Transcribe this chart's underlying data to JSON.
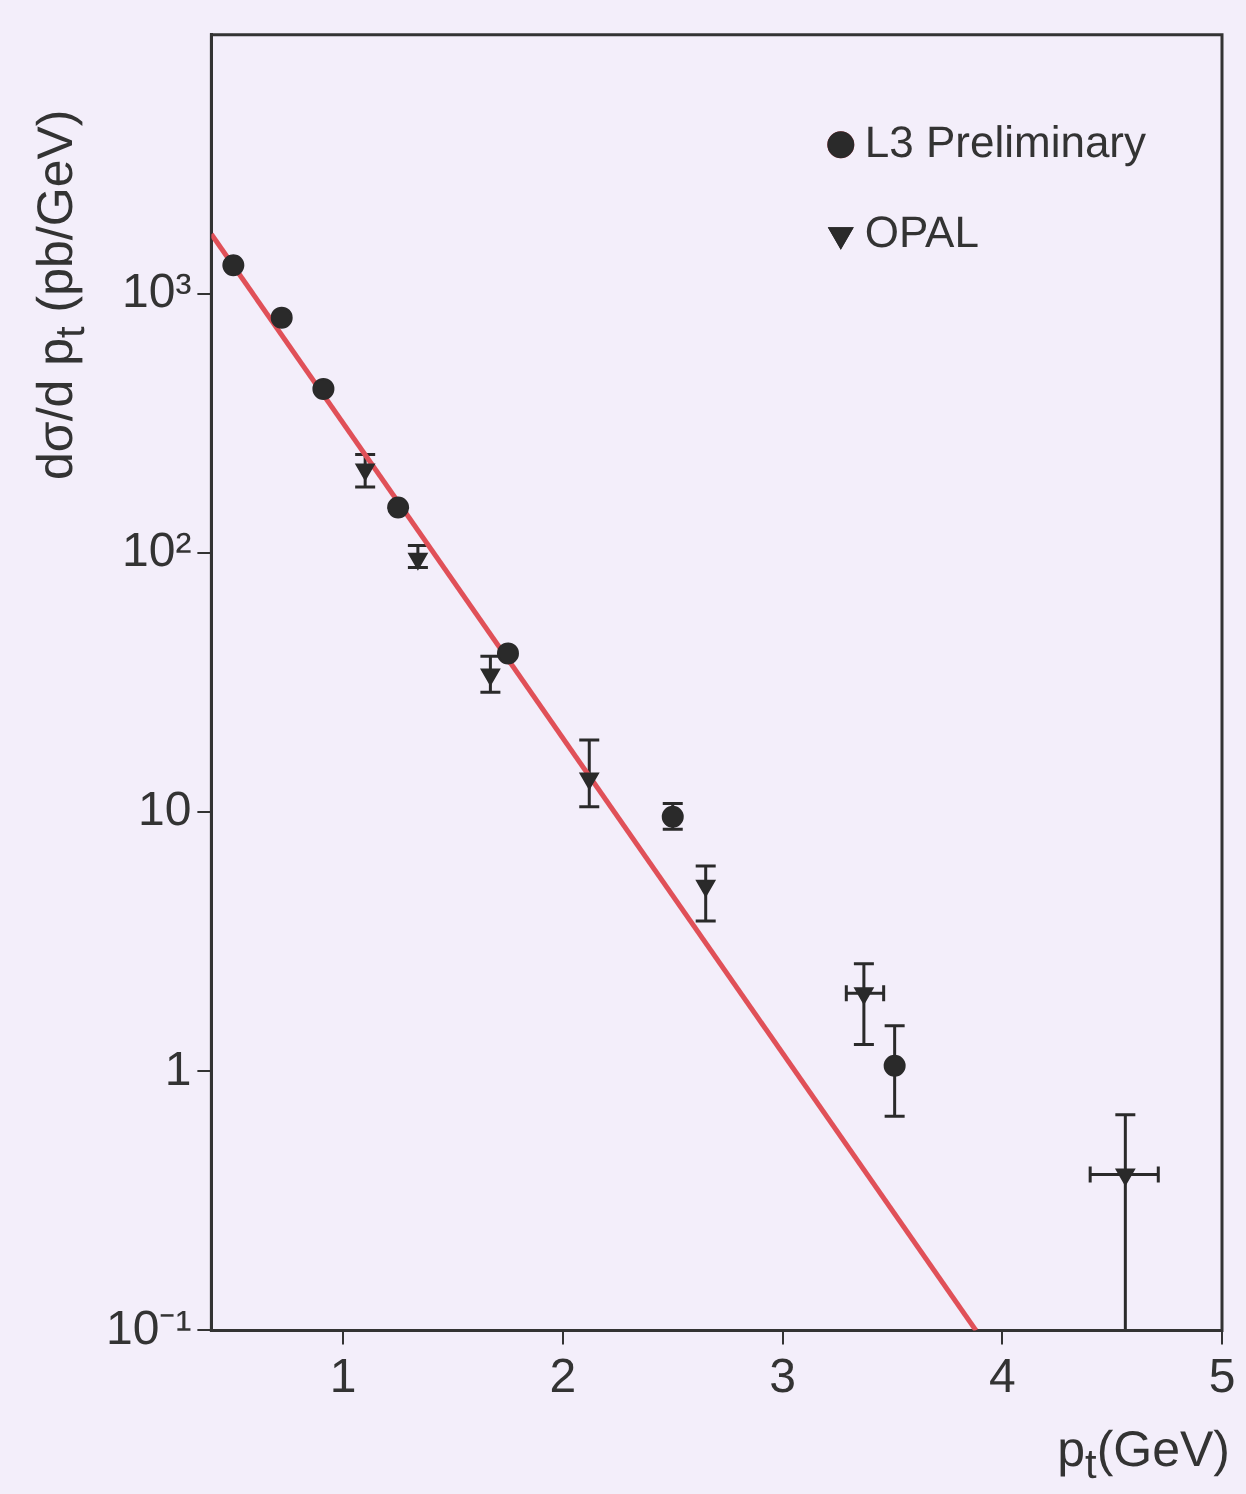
{
  "chart_data": {
    "type": "scatter",
    "xlabel": "p$_{t}$(GeV)",
    "ylabel": "dσ/d p$_{t}$ (pb/GeV)",
    "log": "y",
    "xlim": [
      0.4,
      5
    ],
    "xticks": [
      1,
      2,
      3,
      4,
      5
    ],
    "ylim": [
      0.1,
      10000
    ],
    "yticks": [
      {
        "value": 0.1,
        "label": "10⁻¹"
      },
      1,
      10,
      {
        "value": 100,
        "label": "10²"
      },
      {
        "value": 1000,
        "label": "10³"
      }
    ],
    "grid": false,
    "legend": "top right",
    "series": [
      {
        "name": "L3 Preliminary",
        "color": "#2a2a2a",
        "marker": "circle",
        "x": [
          0.5,
          0.72,
          0.91,
          1.25,
          1.75,
          2.5,
          3.51
        ],
        "values": [
          1290,
          810,
          430,
          150,
          41,
          9.6,
          1.05
        ],
        "errors": [
          null,
          null,
          null,
          null,
          null,
          [
            8.6,
            10.8
          ],
          [
            0.67,
            1.5
          ]
        ]
      },
      {
        "name": "OPAL",
        "color": "#2a2a2a",
        "marker": "triangle",
        "x": [
          1.1,
          1.34,
          1.67,
          2.12,
          2.65,
          3.37,
          4.56
        ],
        "values": [
          210,
          95,
          34,
          13.5,
          5.2,
          2.0,
          0.4
        ],
        "errors": [
          [
            180,
            240
          ],
          [
            88,
            107
          ],
          [
            29,
            40
          ],
          [
            10.5,
            19
          ],
          [
            3.8,
            6.2
          ],
          [
            1.27,
            2.6
          ],
          [
            0.1,
            0.68
          ]
        ],
        "xerrors": [
          null,
          null,
          null,
          null,
          null,
          [
            3.29,
            3.46
          ],
          [
            4.4,
            4.71
          ]
        ]
      },
      {
        "type": "line",
        "color": "#e05058",
        "marker": "none",
        "x": [
          0.4,
          3.88
        ],
        "values": [
          1700,
          0.1
        ]
      }
    ]
  }
}
